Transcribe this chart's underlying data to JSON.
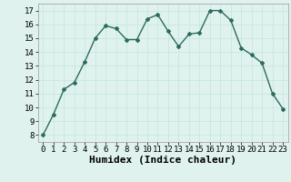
{
  "x": [
    0,
    1,
    2,
    3,
    4,
    5,
    6,
    7,
    8,
    9,
    10,
    11,
    12,
    13,
    14,
    15,
    16,
    17,
    18,
    19,
    20,
    21,
    22,
    23
  ],
  "y": [
    8.0,
    9.5,
    11.3,
    11.8,
    13.3,
    15.0,
    15.9,
    15.7,
    14.9,
    14.9,
    16.4,
    16.7,
    15.5,
    14.4,
    15.3,
    15.4,
    17.0,
    17.0,
    16.3,
    14.3,
    13.8,
    13.2,
    11.0,
    9.9
  ],
  "line_color": "#2e6b5e",
  "marker": "D",
  "marker_size": 2.0,
  "xlabel": "Humidex (Indice chaleur)",
  "xlim": [
    -0.5,
    23.5
  ],
  "ylim": [
    7.5,
    17.5
  ],
  "yticks": [
    8,
    9,
    10,
    11,
    12,
    13,
    14,
    15,
    16,
    17
  ],
  "xticks": [
    0,
    1,
    2,
    3,
    4,
    5,
    6,
    7,
    8,
    9,
    10,
    11,
    12,
    13,
    14,
    15,
    16,
    17,
    18,
    19,
    20,
    21,
    22,
    23
  ],
  "grid_color": "#c8e8e0",
  "bg_color": "#dff2ee",
  "xlabel_fontsize": 8,
  "tick_fontsize": 6.5
}
